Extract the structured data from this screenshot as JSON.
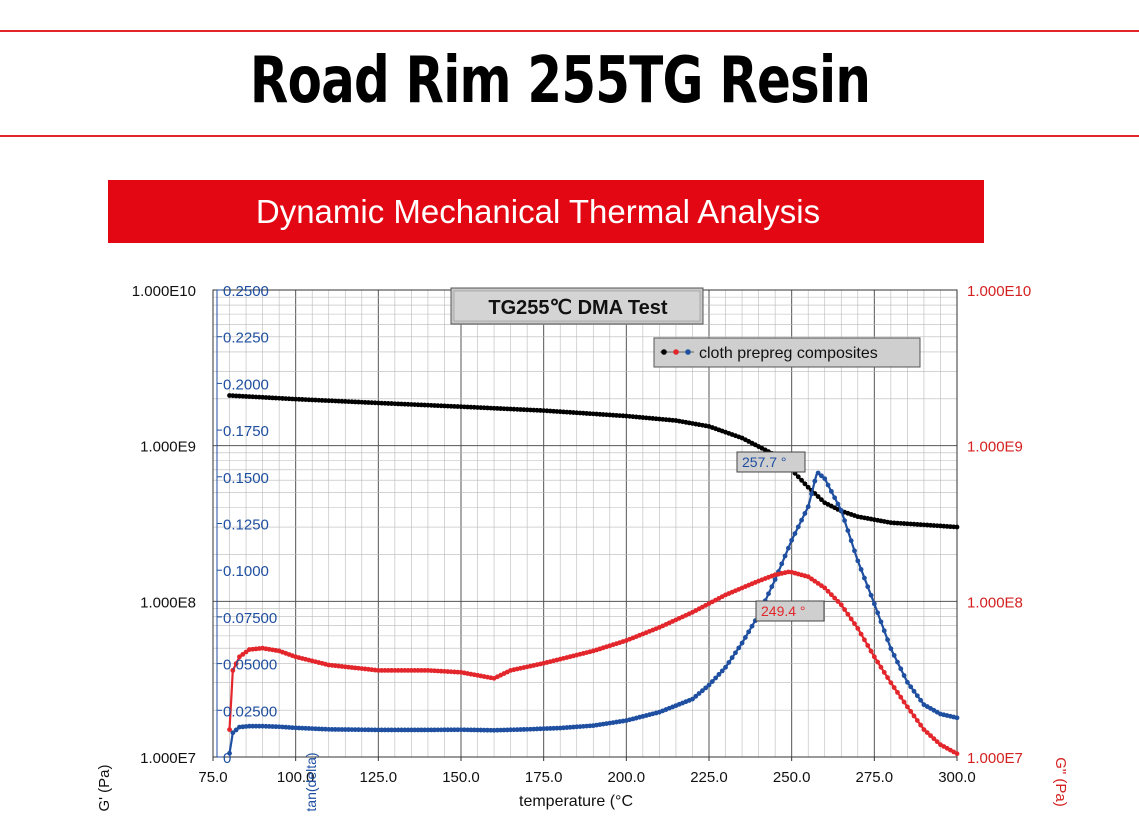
{
  "header": {
    "title": "Road Rim 255TG Resin",
    "banner": "Dynamic Mechanical Thermal Analysis"
  },
  "colors": {
    "accent_red": "#e30613",
    "series_black": "#000000",
    "series_red": "#e3262b",
    "series_blue": "#1f4fa0",
    "axis_blue": "#1f4fa0",
    "axis_red": "#d42020"
  },
  "chart_data": {
    "type": "scatter",
    "title": "TG255℃ DMA Test",
    "legend": {
      "label": "cloth prepreg composites",
      "placement": "top-right"
    },
    "xlabel": "temperature (°C",
    "ylabel_left": "G' (Pa)",
    "ylabel_tan": "tan(delta)",
    "ylabel_right": "G\" (Pa)",
    "xlim": [
      75,
      300
    ],
    "x_ticks": [
      "75.0",
      "100.0",
      "125.0",
      "150.0",
      "175.0",
      "200.0",
      "225.0",
      "250.0",
      "275.0",
      "300.0"
    ],
    "y_left_log": true,
    "y_left_lim": [
      10000000,
      10000000000
    ],
    "y_left_ticks": [
      "1.000E7",
      "1.000E8",
      "1.000E9",
      "1.000E10"
    ],
    "y_right_log": true,
    "y_right_lim": [
      10000000,
      10000000000
    ],
    "y_right_ticks": [
      "1.000E7",
      "1.000E8",
      "1.000E9",
      "1.000E10"
    ],
    "y_tan_lim": [
      0,
      0.25
    ],
    "y_tan_ticks": [
      "0",
      "0.02500",
      "0.05000",
      "0.07500",
      "0.1000",
      "0.1250",
      "0.1500",
      "0.1750",
      "0.2000",
      "0.2250",
      "0.2500"
    ],
    "grid": true,
    "series": [
      {
        "name": "G'",
        "axis": "left",
        "color": "#000000",
        "x": [
          80,
          100,
          125,
          150,
          175,
          200,
          215,
          225,
          235,
          245,
          250,
          255,
          260,
          265,
          270,
          280,
          290,
          300
        ],
        "y": [
          2100000000,
          1990000000,
          1880000000,
          1780000000,
          1680000000,
          1550000000,
          1450000000,
          1330000000,
          1120000000,
          870000000,
          700000000,
          540000000,
          430000000,
          380000000,
          350000000,
          320000000,
          310000000,
          300000000
        ]
      },
      {
        "name": "tan(delta)",
        "axis": "tan",
        "color": "#1f4fa0",
        "x": [
          80,
          81,
          83,
          86,
          90,
          95,
          100,
          110,
          125,
          140,
          150,
          160,
          170,
          180,
          190,
          200,
          210,
          220,
          225,
          230,
          235,
          240,
          245,
          250,
          255,
          257.7,
          260,
          265,
          270,
          275,
          280,
          285,
          290,
          295,
          300
        ],
        "y": [
          0.002,
          0.013,
          0.016,
          0.0165,
          0.0165,
          0.0162,
          0.0156,
          0.0148,
          0.0145,
          0.0145,
          0.0146,
          0.0143,
          0.0148,
          0.0155,
          0.0168,
          0.0195,
          0.024,
          0.031,
          0.0385,
          0.048,
          0.061,
          0.076,
          0.095,
          0.116,
          0.134,
          0.1525,
          0.149,
          0.132,
          0.105,
          0.082,
          0.058,
          0.04,
          0.028,
          0.023,
          0.021
        ]
      },
      {
        "name": "G\"",
        "axis": "right",
        "color": "#e3262b",
        "x": [
          80,
          81,
          83,
          86,
          90,
          95,
          100,
          110,
          125,
          140,
          150,
          160,
          165,
          175,
          190,
          200,
          210,
          220,
          230,
          240,
          245,
          249.4,
          255,
          260,
          265,
          270,
          275,
          280,
          285,
          290,
          295,
          300
        ],
        "y": [
          15000000,
          36000000,
          44000000,
          49000000,
          50000000,
          48000000,
          44000000,
          39000000,
          36000000,
          36000000,
          35000000,
          32000000,
          36000000,
          40000000,
          48000000,
          56000000,
          68000000,
          85000000,
          110000000,
          135000000,
          148000000,
          155000000,
          144000000,
          122000000,
          95000000,
          67000000,
          44000000,
          30000000,
          21000000,
          15000000,
          12000000,
          10500000
        ]
      }
    ],
    "annotations": [
      {
        "text": "257.7 °",
        "series": "tan(delta)",
        "x": 257.7
      },
      {
        "text": "249.4 °",
        "series": "G\"",
        "x": 249.4
      }
    ]
  }
}
